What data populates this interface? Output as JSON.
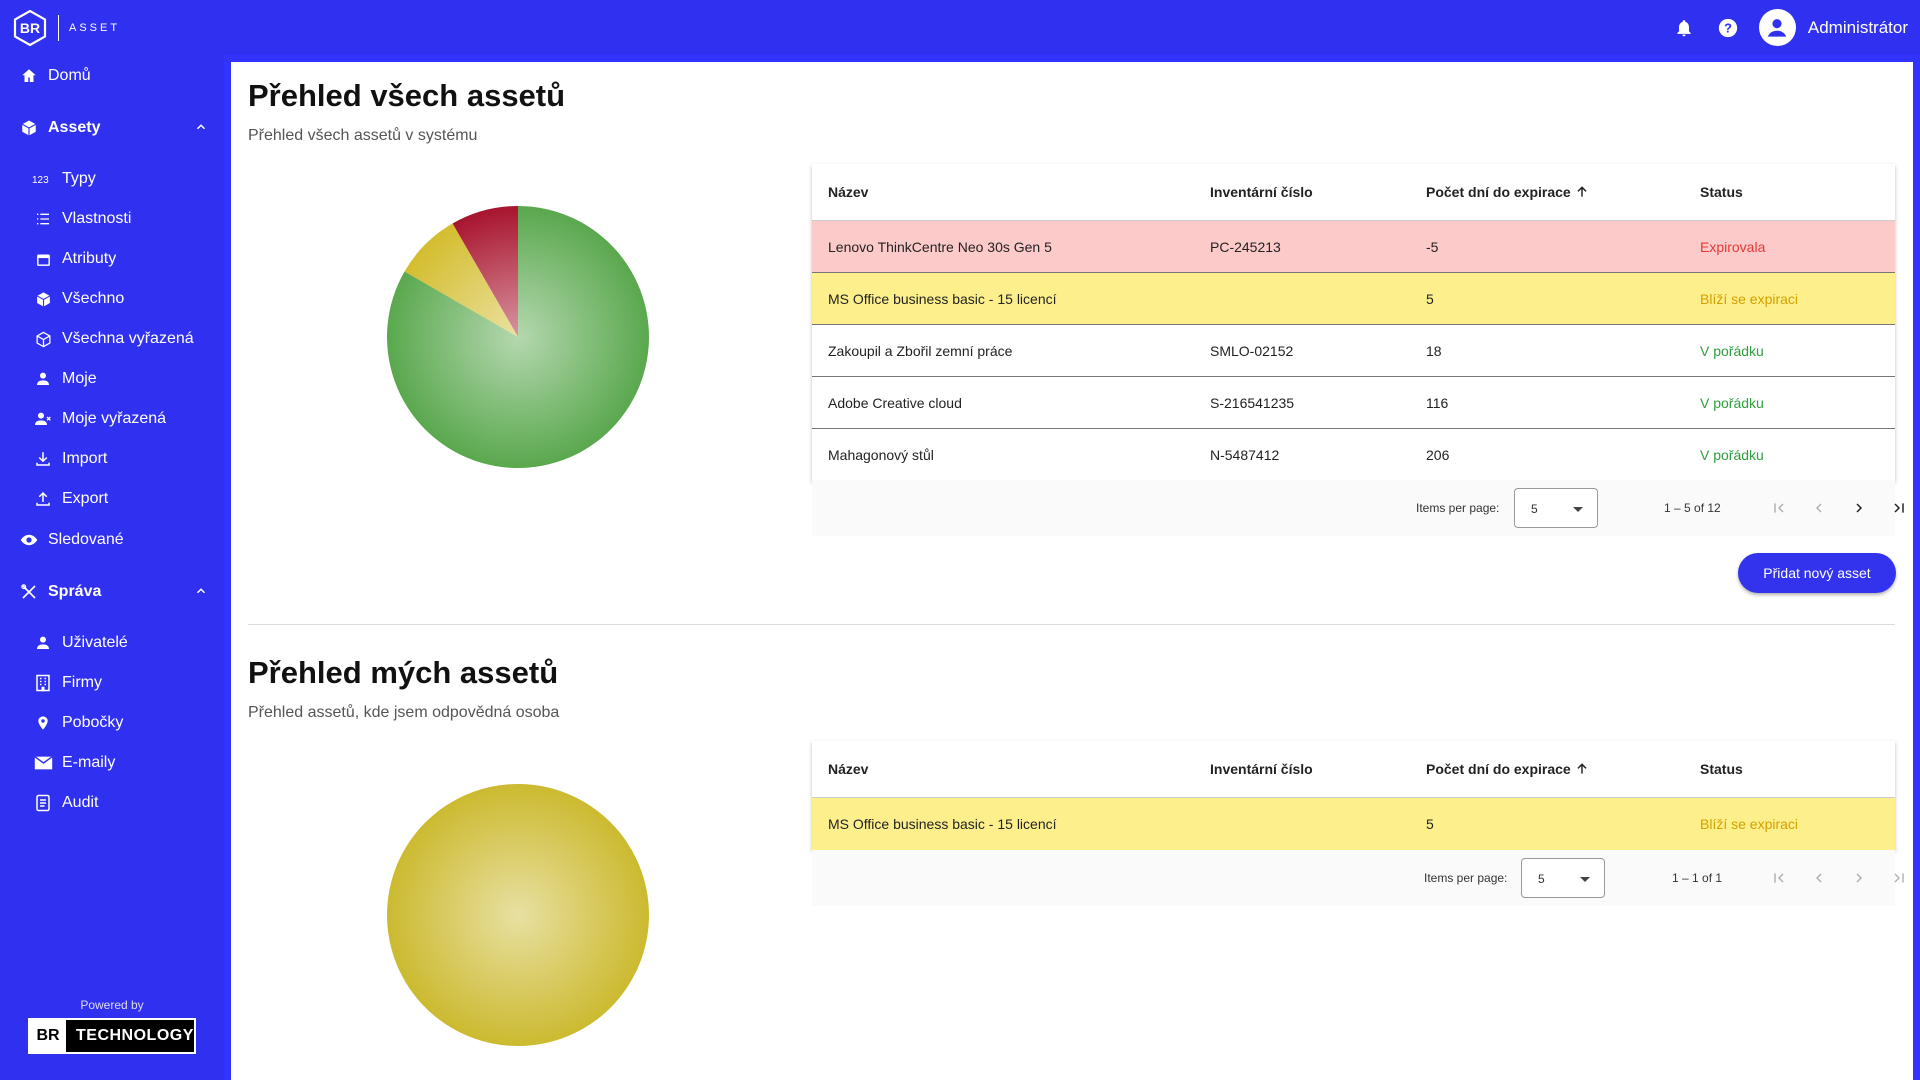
{
  "header": {
    "logo_letters": "BR",
    "app_label": "ASSET",
    "user_name": "Administrátor"
  },
  "sidebar": {
    "items": [
      {
        "label": "Domů",
        "icon": "home-icon"
      },
      {
        "label": "Assety",
        "icon": "cube-icon",
        "group": true,
        "expanded": true
      },
      {
        "label": "Typy",
        "icon": "123-icon"
      },
      {
        "label": "Vlastnosti",
        "icon": "list-icon"
      },
      {
        "label": "Atributy",
        "icon": "calendar-icon"
      },
      {
        "label": "Všechno",
        "icon": "cube-icon"
      },
      {
        "label": "Všechna vyřazená",
        "icon": "cube-outline-icon"
      },
      {
        "label": "Moje",
        "icon": "person-icon"
      },
      {
        "label": "Moje vyřazená",
        "icon": "person-remove-icon"
      },
      {
        "label": "Import",
        "icon": "download-icon"
      },
      {
        "label": "Export",
        "icon": "upload-icon"
      },
      {
        "label": "Sledované",
        "icon": "eye-icon"
      },
      {
        "label": "Správa",
        "icon": "tools-icon",
        "group": true,
        "expanded": true
      },
      {
        "label": "Uživatelé",
        "icon": "person-icon"
      },
      {
        "label": "Firmy",
        "icon": "building-icon"
      },
      {
        "label": "Pobočky",
        "icon": "location-icon"
      },
      {
        "label": "E-maily",
        "icon": "mail-icon"
      },
      {
        "label": "Audit",
        "icon": "document-icon"
      }
    ],
    "powered_by": "Powered by",
    "brand_br": "BR",
    "brand_tech": "TECHNOLOGY"
  },
  "section_all": {
    "title": "Přehled všech assetů",
    "subtitle": "Přehled všech assetů v systému",
    "columns": [
      "Název",
      "Inventární číslo",
      "Počet dní do expirace",
      "Status"
    ],
    "rows": [
      {
        "name": "Lenovo ThinkCentre Neo 30s Gen 5",
        "inv": "PC-245213",
        "days": "-5",
        "status": "Expirovala",
        "kind": "red"
      },
      {
        "name": "MS Office business basic - 15 licencí",
        "inv": "",
        "days": "5",
        "status": "Blíží se expiraci",
        "kind": "yellow"
      },
      {
        "name": "Zakoupil a Zbořil zemní práce",
        "inv": "SMLO-02152",
        "days": "18",
        "status": "V pořádku",
        "kind": "green"
      },
      {
        "name": "Adobe Creative cloud",
        "inv": "S-216541235",
        "days": "116",
        "status": "V pořádku",
        "kind": "green"
      },
      {
        "name": "Mahagonový stůl",
        "inv": "N-5487412",
        "days": "206",
        "status": "V pořádku",
        "kind": "green"
      }
    ],
    "items_per_page_label": "Items per page:",
    "items_per_page": "5",
    "range": "1 – 5 of 12",
    "add_button": "Přidat nový asset"
  },
  "section_mine": {
    "title": "Přehled mých assetů",
    "subtitle": "Přehled assetů, kde jsem odpovědná osoba",
    "columns": [
      "Název",
      "Inventární číslo",
      "Počet dní do expirace",
      "Status"
    ],
    "rows": [
      {
        "name": "MS Office business basic - 15 licencí",
        "inv": "",
        "days": "5",
        "status": "Blíží se expiraci",
        "kind": "yellow"
      }
    ],
    "items_per_page_label": "Items per page:",
    "items_per_page": "5",
    "range": "1 – 1 of 1"
  },
  "chart_data": [
    {
      "type": "pie",
      "slices": [
        {
          "label": "Expirovala",
          "value": 1,
          "color": "#a8142e"
        },
        {
          "label": "Blíží se expiraci",
          "value": 1,
          "color": "#d4bd2e"
        },
        {
          "label": "V pořádku",
          "value": 10,
          "color": "#5aa84e"
        }
      ]
    },
    {
      "type": "pie",
      "slices": [
        {
          "label": "Blíží se expiraci",
          "value": 1,
          "color": "#ccba30"
        }
      ]
    }
  ],
  "colors": {
    "brand_blue": "#3030f0",
    "expired_row": "#fdcaca",
    "warning_row": "#fdf08c"
  }
}
